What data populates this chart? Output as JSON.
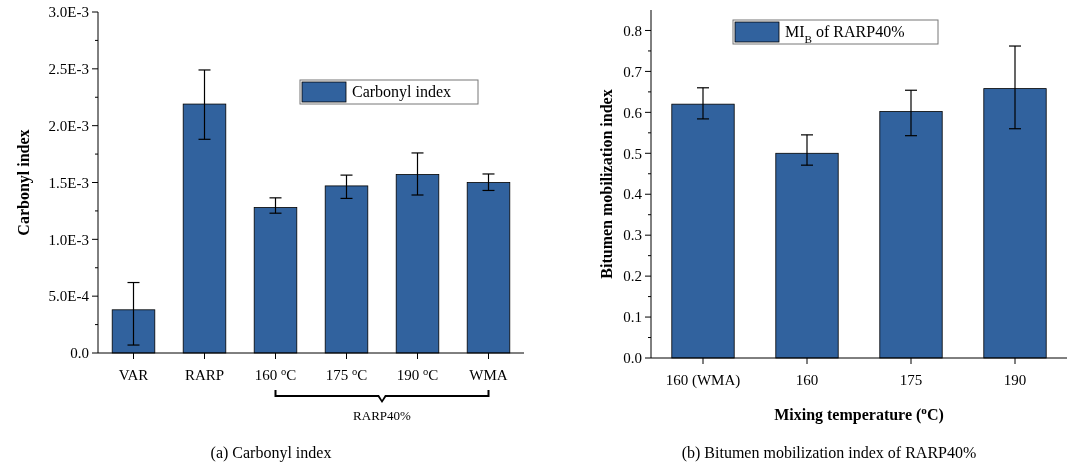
{
  "chart_data": [
    {
      "type": "bar",
      "title": "(a) Carbonyl index",
      "ylabel": "Carbonyl index",
      "categories": [
        "VAR",
        "RARP",
        "160 $^{o}$C",
        "175 $^{o}$C",
        "190 $^{o}$C",
        "WMA"
      ],
      "series": [
        {
          "name": "Carbonyl index",
          "color": "#31629e",
          "values": [
            0.00038,
            0.00219,
            0.00128,
            0.00147,
            0.00157,
            0.0015
          ],
          "errors": [
            [
              7e-05,
              0.00062
            ],
            [
              0.00188,
              0.00249
            ],
            [
              0.00123,
              0.001365
            ],
            [
              0.00136,
              0.001565
            ],
            [
              0.00139,
              0.00176
            ],
            [
              0.00143,
              0.001575
            ]
          ]
        }
      ],
      "ylim": [
        0,
        0.003
      ],
      "yticks": [
        {
          "value": 0,
          "label": "0.0"
        },
        {
          "value": 0.00025,
          "label": null
        },
        {
          "value": 0.0005,
          "label": "5.0E-4"
        },
        {
          "value": 0.00075,
          "label": null
        },
        {
          "value": 0.001,
          "label": "1.0E-3"
        },
        {
          "value": 0.00125,
          "label": null
        },
        {
          "value": 0.0015,
          "label": "1.5E-3"
        },
        {
          "value": 0.00175,
          "label": null
        },
        {
          "value": 0.002,
          "label": "2.0E-3"
        },
        {
          "value": 0.00225,
          "label": null
        },
        {
          "value": 0.0025,
          "label": "2.5E-3"
        },
        {
          "value": 0.00275,
          "label": null
        },
        {
          "value": 0.003,
          "label": "3.0E-3"
        }
      ],
      "annotations": [
        "RARP40%"
      ],
      "legend": "top right",
      "grid": false
    },
    {
      "type": "bar",
      "title": "(b) Bitumen mobilization index of RARP40%",
      "xlabel": "Mixing temperature ($^{o}$C)",
      "ylabel": "Bitumen mobilization index",
      "categories": [
        "160 (WMA)",
        "160",
        "175",
        "190"
      ],
      "series": [
        {
          "name": "MI$_{B}$ of RARP40%",
          "color": "#31629e",
          "values": [
            0.62,
            0.5,
            0.602,
            0.658
          ],
          "errors": [
            [
              0.584,
              0.66
            ],
            [
              0.471,
              0.545
            ],
            [
              0.543,
              0.654
            ],
            [
              0.56,
              0.762
            ]
          ]
        }
      ],
      "ylim": [
        0,
        0.85
      ],
      "yticks": [
        {
          "value": 0,
          "label": "0.0"
        },
        {
          "value": 0.05,
          "label": null
        },
        0.1,
        {
          "value": 0.15,
          "label": null
        },
        0.2,
        {
          "value": 0.25,
          "label": null
        },
        0.3,
        {
          "value": 0.35,
          "label": null
        },
        0.4,
        {
          "value": 0.45,
          "label": null
        },
        0.5,
        {
          "value": 0.55,
          "label": null
        },
        0.6,
        {
          "value": 0.65,
          "label": null
        },
        0.7,
        {
          "value": 0.75,
          "label": null
        },
        0.8
      ],
      "legend": "top",
      "grid": false
    }
  ]
}
